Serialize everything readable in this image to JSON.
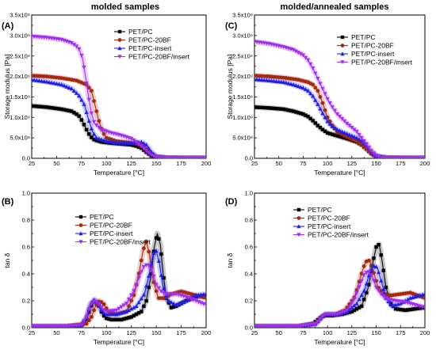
{
  "column_headers": [
    "molded samples",
    "molded/annealed samples"
  ],
  "colors": {
    "PET/PC": "#000000",
    "PET/PC-20BF": "#a52a0f",
    "PET/PC-insert": "#1f1fe6",
    "PET/PC-20BF/insert": "#a02ff0"
  },
  "chart_data": [
    {
      "panel_label": "(A)",
      "type": "line",
      "xlabel": "Temperature [°C]",
      "ylabel": "Storage modulus [Pa]",
      "xlim": [
        25,
        200
      ],
      "ylim": [
        0,
        3500000000
      ],
      "grid": false,
      "legend": "top-right",
      "x_ticks": [
        25,
        50,
        75,
        100,
        125,
        150,
        175,
        200
      ],
      "y_ticks": [
        0,
        500000000,
        1000000000,
        1500000000,
        2000000000,
        2500000000,
        3000000000,
        3500000000
      ],
      "y_tick_labels": [
        "0.0",
        "5.0x10⁸",
        "1.0x10⁹",
        "1.5x10⁹",
        "2.0x10⁹",
        "2.5x10⁹",
        "3.0x10⁹",
        "3.5x10⁹"
      ],
      "series": [
        {
          "name": "PET/PC",
          "marker": "square",
          "x": [
            25,
            40,
            55,
            65,
            72,
            76,
            80,
            84,
            88,
            95,
            105,
            115,
            125,
            130,
            135,
            140,
            145,
            150,
            160,
            175,
            200
          ],
          "y": [
            1280000000,
            1250000000,
            1200000000,
            1150000000,
            1050000000,
            900000000,
            700000000,
            530000000,
            450000000,
            400000000,
            370000000,
            350000000,
            330000000,
            300000000,
            250000000,
            150000000,
            60000000,
            20000000,
            10000000,
            5000000,
            5000000
          ]
        },
        {
          "name": "PET/PC-20BF",
          "marker": "circle",
          "x": [
            25,
            40,
            55,
            70,
            80,
            85,
            88,
            92,
            96,
            100,
            110,
            120,
            130,
            135,
            140,
            145,
            150,
            160,
            175,
            200
          ],
          "y": [
            2020000000,
            2000000000,
            1960000000,
            1900000000,
            1800000000,
            1650000000,
            1350000000,
            950000000,
            650000000,
            500000000,
            420000000,
            390000000,
            360000000,
            320000000,
            230000000,
            110000000,
            40000000,
            15000000,
            8000000,
            5000000
          ]
        },
        {
          "name": "PET/PC-insert",
          "marker": "triangle",
          "x": [
            25,
            40,
            55,
            65,
            72,
            78,
            82,
            86,
            90,
            100,
            110,
            120,
            130,
            135,
            140,
            145,
            150,
            160,
            175,
            200
          ],
          "y": [
            1920000000,
            1870000000,
            1800000000,
            1700000000,
            1550000000,
            1300000000,
            950000000,
            650000000,
            500000000,
            420000000,
            380000000,
            370000000,
            380000000,
            400000000,
            330000000,
            160000000,
            50000000,
            15000000,
            8000000,
            5000000
          ]
        },
        {
          "name": "PET/PC-20BF/insert",
          "marker": "triangle-down",
          "x": [
            25,
            40,
            55,
            65,
            72,
            76,
            79,
            82,
            85,
            88,
            95,
            105,
            115,
            125,
            130,
            135,
            140,
            145,
            150,
            160,
            175,
            200
          ],
          "y": [
            2980000000,
            2950000000,
            2900000000,
            2820000000,
            2700000000,
            2450000000,
            2000000000,
            1500000000,
            1100000000,
            850000000,
            700000000,
            620000000,
            560000000,
            480000000,
            400000000,
            300000000,
            180000000,
            80000000,
            30000000,
            10000000,
            5000000,
            5000000
          ]
        }
      ]
    },
    {
      "panel_label": "(C)",
      "type": "line",
      "xlabel": "Temperature [°C]",
      "ylabel": "Storage modulus [Pa]",
      "xlim": [
        25,
        200
      ],
      "ylim": [
        0,
        3500000000
      ],
      "grid": false,
      "legend": "top-right",
      "x_ticks": [
        25,
        50,
        75,
        100,
        125,
        150,
        175,
        200
      ],
      "y_ticks": [
        0,
        500000000,
        1000000000,
        1500000000,
        2000000000,
        2500000000,
        3000000000,
        3500000000
      ],
      "y_tick_labels": [
        "0.0",
        "5.0x10⁸",
        "1.0x10⁹",
        "1.5x10⁹",
        "2.0x10⁹",
        "2.5x10⁹",
        "3.0x10⁹",
        "3.5x10⁹"
      ],
      "series": [
        {
          "name": "PET/PC",
          "marker": "square",
          "x": [
            25,
            40,
            55,
            65,
            75,
            80,
            85,
            90,
            95,
            100,
            110,
            120,
            130,
            135,
            140,
            145,
            150,
            160,
            175,
            200
          ],
          "y": [
            1250000000,
            1230000000,
            1200000000,
            1150000000,
            1080000000,
            1020000000,
            920000000,
            800000000,
            700000000,
            620000000,
            550000000,
            480000000,
            400000000,
            330000000,
            230000000,
            120000000,
            50000000,
            15000000,
            8000000,
            5000000
          ]
        },
        {
          "name": "PET/PC-20BF",
          "marker": "circle",
          "x": [
            25,
            40,
            55,
            70,
            80,
            85,
            90,
            95,
            100,
            105,
            110,
            120,
            130,
            135,
            140,
            145,
            150,
            160,
            175,
            200
          ],
          "y": [
            2020000000,
            2000000000,
            1970000000,
            1920000000,
            1860000000,
            1800000000,
            1650000000,
            1350000000,
            1000000000,
            800000000,
            650000000,
            520000000,
            420000000,
            340000000,
            230000000,
            110000000,
            40000000,
            15000000,
            8000000,
            5000000
          ]
        },
        {
          "name": "PET/PC-insert",
          "marker": "triangle",
          "x": [
            25,
            40,
            55,
            65,
            75,
            80,
            85,
            90,
            95,
            100,
            105,
            110,
            120,
            130,
            135,
            140,
            145,
            150,
            160,
            175,
            200
          ],
          "y": [
            1930000000,
            1900000000,
            1860000000,
            1800000000,
            1720000000,
            1650000000,
            1520000000,
            1320000000,
            1100000000,
            900000000,
            780000000,
            700000000,
            600000000,
            500000000,
            430000000,
            320000000,
            160000000,
            50000000,
            15000000,
            8000000,
            5000000
          ]
        },
        {
          "name": "PET/PC-20BF/insert",
          "marker": "triangle-down",
          "x": [
            25,
            40,
            55,
            65,
            75,
            80,
            85,
            90,
            95,
            100,
            105,
            110,
            120,
            130,
            140,
            145,
            150,
            155,
            160,
            175,
            200
          ],
          "y": [
            2850000000,
            2800000000,
            2720000000,
            2650000000,
            2520000000,
            2400000000,
            2200000000,
            1950000000,
            1700000000,
            1450000000,
            1250000000,
            1080000000,
            850000000,
            650000000,
            350000000,
            180000000,
            70000000,
            25000000,
            10000000,
            5000000,
            5000000
          ]
        }
      ]
    },
    {
      "panel_label": "(B)",
      "type": "line",
      "xlabel": "Temperature [°C]",
      "ylabel": "tan δ",
      "xlim": [
        25,
        200
      ],
      "ylim": [
        0,
        1.0
      ],
      "grid": false,
      "legend": "top-center",
      "x_ticks": [
        25,
        50,
        75,
        100,
        125,
        150,
        175,
        200
      ],
      "y_ticks": [
        0,
        0.2,
        0.4,
        0.6,
        0.8,
        1.0
      ],
      "y_tick_labels": [
        "0.0",
        "0.2",
        "0.4",
        "0.6",
        "0.8",
        "1.0"
      ],
      "series": [
        {
          "name": "PET/PC",
          "marker": "square",
          "x": [
            25,
            60,
            75,
            80,
            84,
            88,
            92,
            96,
            100,
            105,
            115,
            125,
            135,
            140,
            145,
            148,
            151,
            154,
            157,
            160,
            165,
            170,
            180,
            190,
            200
          ],
          "y": [
            0.01,
            0.01,
            0.02,
            0.06,
            0.15,
            0.2,
            0.17,
            0.1,
            0.07,
            0.06,
            0.06,
            0.08,
            0.12,
            0.2,
            0.4,
            0.6,
            0.7,
            0.62,
            0.4,
            0.22,
            0.15,
            0.16,
            0.2,
            0.23,
            0.24
          ]
        },
        {
          "name": "PET/PC-20BF",
          "marker": "circle",
          "x": [
            25,
            60,
            80,
            85,
            89,
            93,
            97,
            102,
            110,
            120,
            128,
            133,
            137,
            140,
            143,
            147,
            152,
            158,
            165,
            175,
            185,
            200
          ],
          "y": [
            0.01,
            0.01,
            0.03,
            0.08,
            0.16,
            0.2,
            0.18,
            0.12,
            0.1,
            0.12,
            0.25,
            0.42,
            0.58,
            0.64,
            0.55,
            0.35,
            0.22,
            0.22,
            0.25,
            0.27,
            0.25,
            0.22
          ]
        },
        {
          "name": "PET/PC-insert",
          "marker": "triangle",
          "x": [
            25,
            60,
            75,
            80,
            84,
            88,
            92,
            96,
            100,
            110,
            120,
            130,
            138,
            143,
            147,
            150,
            153,
            157,
            162,
            170,
            180,
            190,
            200
          ],
          "y": [
            0.01,
            0.01,
            0.02,
            0.08,
            0.18,
            0.21,
            0.17,
            0.12,
            0.1,
            0.1,
            0.12,
            0.16,
            0.25,
            0.4,
            0.55,
            0.57,
            0.48,
            0.3,
            0.2,
            0.17,
            0.2,
            0.24,
            0.25
          ]
        },
        {
          "name": "PET/PC-20BF/insert",
          "marker": "triangle-down",
          "x": [
            25,
            60,
            75,
            80,
            84,
            88,
            92,
            96,
            100,
            110,
            120,
            128,
            134,
            138,
            142,
            146,
            150,
            155,
            160,
            170,
            180,
            190,
            200
          ],
          "y": [
            0.01,
            0.01,
            0.02,
            0.08,
            0.17,
            0.2,
            0.18,
            0.14,
            0.12,
            0.13,
            0.18,
            0.28,
            0.4,
            0.46,
            0.47,
            0.42,
            0.32,
            0.27,
            0.25,
            0.25,
            0.23,
            0.2,
            0.17
          ]
        }
      ]
    },
    {
      "panel_label": "(D)",
      "type": "line",
      "xlabel": "Temperature [°C]",
      "ylabel": "tan δ",
      "xlim": [
        25,
        200
      ],
      "ylim": [
        0,
        1.0
      ],
      "grid": false,
      "legend": "top-center",
      "x_ticks": [
        25,
        50,
        75,
        100,
        125,
        150,
        175,
        200
      ],
      "y_ticks": [
        0,
        0.2,
        0.4,
        0.6,
        0.8,
        1.0
      ],
      "y_tick_labels": [
        "0.0",
        "0.2",
        "0.4",
        "0.6",
        "0.8",
        "1.0"
      ],
      "series": [
        {
          "name": "PET/PC",
          "marker": "square",
          "x": [
            25,
            70,
            85,
            92,
            96,
            100,
            105,
            115,
            125,
            135,
            142,
            147,
            150,
            153,
            156,
            160,
            165,
            170,
            180,
            190,
            200
          ],
          "y": [
            0.01,
            0.01,
            0.03,
            0.07,
            0.09,
            0.09,
            0.09,
            0.1,
            0.12,
            0.16,
            0.3,
            0.5,
            0.6,
            0.62,
            0.5,
            0.3,
            0.18,
            0.14,
            0.13,
            0.14,
            0.15
          ]
        },
        {
          "name": "PET/PC-20BF",
          "marker": "circle",
          "x": [
            25,
            70,
            88,
            94,
            98,
            102,
            108,
            118,
            128,
            134,
            139,
            143,
            147,
            152,
            158,
            165,
            175,
            185,
            200
          ],
          "y": [
            0.01,
            0.01,
            0.03,
            0.08,
            0.1,
            0.1,
            0.1,
            0.13,
            0.23,
            0.38,
            0.49,
            0.5,
            0.42,
            0.3,
            0.25,
            0.24,
            0.25,
            0.26,
            0.22
          ]
        },
        {
          "name": "PET/PC-insert",
          "marker": "triangle",
          "x": [
            25,
            70,
            88,
            94,
            98,
            102,
            110,
            120,
            130,
            138,
            143,
            147,
            151,
            155,
            160,
            166,
            175,
            185,
            200
          ],
          "y": [
            0.01,
            0.01,
            0.03,
            0.08,
            0.1,
            0.1,
            0.1,
            0.12,
            0.18,
            0.28,
            0.4,
            0.46,
            0.45,
            0.35,
            0.22,
            0.16,
            0.18,
            0.22,
            0.25
          ]
        },
        {
          "name": "PET/PC-20BF/insert",
          "marker": "triangle-down",
          "x": [
            25,
            70,
            88,
            94,
            98,
            102,
            110,
            120,
            128,
            134,
            138,
            142,
            146,
            150,
            156,
            162,
            170,
            180,
            190,
            200
          ],
          "y": [
            0.01,
            0.01,
            0.03,
            0.08,
            0.1,
            0.1,
            0.1,
            0.13,
            0.22,
            0.33,
            0.4,
            0.42,
            0.38,
            0.3,
            0.24,
            0.21,
            0.2,
            0.19,
            0.17,
            0.15
          ]
        }
      ]
    }
  ]
}
